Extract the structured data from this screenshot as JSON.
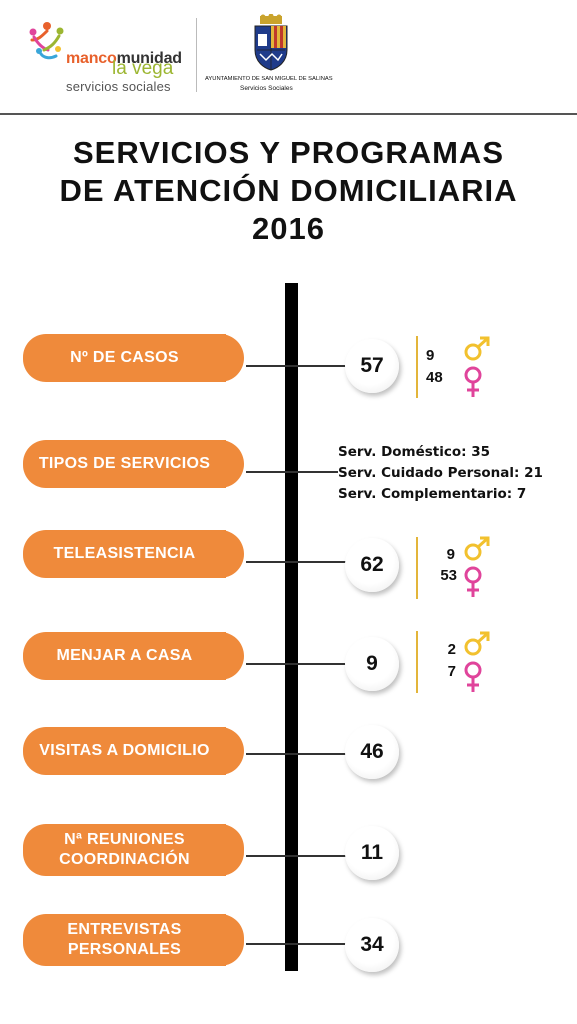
{
  "header": {
    "logo": {
      "name_part1": "manco",
      "name_part2": "munidad",
      "name_line2": "la vega",
      "name_line3": "servicios sociales"
    },
    "ayuntamiento": {
      "name": "AYUNTAMIENTO DE SAN MIGUEL DE SALINAS",
      "subtitle": "Servicios Sociales"
    }
  },
  "title": {
    "line1": "SERVICIOS Y PROGRAMAS",
    "line2": "DE ATENCIÓN DOMICILIARIA",
    "line3": "2016"
  },
  "colors": {
    "accent": "#ef8a3b",
    "male": "#f2c12e",
    "female": "#e0449b",
    "timeline": "#000000"
  },
  "items": [
    {
      "label": "Nº DE CASOS",
      "value": "57",
      "male": "9",
      "female": "48"
    },
    {
      "label": "TIPOS DE SERVICIOS",
      "services": [
        "Serv. Doméstico: 35",
        "Serv. Cuidado Personal: 21",
        "Serv. Complementario: 7"
      ]
    },
    {
      "label": "TELEASISTENCIA",
      "value": "62",
      "male": "9",
      "female": "53"
    },
    {
      "label": "MENJAR A CASA",
      "value": "9",
      "male": "2",
      "female": "7"
    },
    {
      "label": "VISITAS A DOMICILIO",
      "value": "46"
    },
    {
      "label_line1": "Nª REUNIONES",
      "label_line2": "COORDINACIÓN",
      "value": "11"
    },
    {
      "label_line1": "ENTREVISTAS",
      "label_line2": "PERSONALES",
      "value": "34"
    }
  ]
}
